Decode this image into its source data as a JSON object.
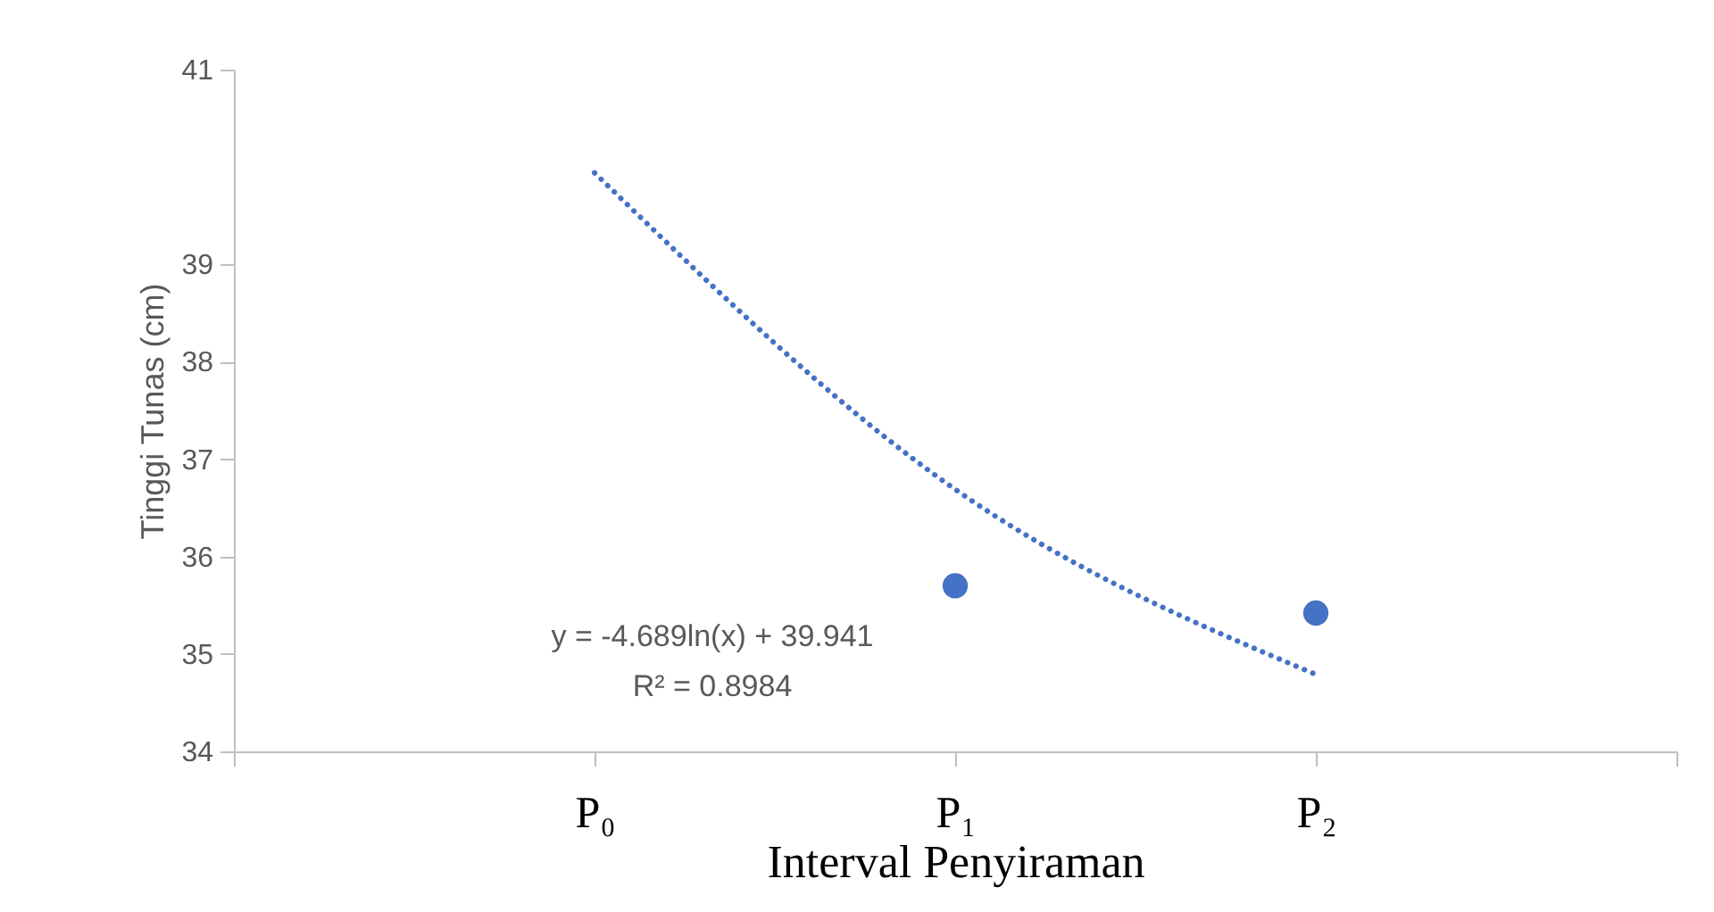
{
  "chart_data": {
    "type": "scatter",
    "xlabel": "Interval Penyiraman",
    "ylabel": "Tinggi Tunas (cm)",
    "categories": [
      null,
      "P₀",
      "P₁",
      "P₂",
      null
    ],
    "ylim": [
      34,
      41
    ],
    "yticks": [
      34,
      35,
      36,
      37,
      38,
      39,
      41
    ],
    "series": [
      {
        "color": "#4472c4",
        "marker": "circle",
        "values": [
          null,
          null,
          35.7,
          35.42,
          null
        ]
      },
      {
        "type": "line",
        "color": "#4472c4",
        "line_style": "dotted",
        "marker": "none",
        "values": [
          null,
          39.94,
          36.69,
          34.79,
          null
        ]
      }
    ],
    "annotations": [
      "y = -4.689ln(x) + 39.941",
      "R² = 0.8984"
    ],
    "grid": false
  }
}
